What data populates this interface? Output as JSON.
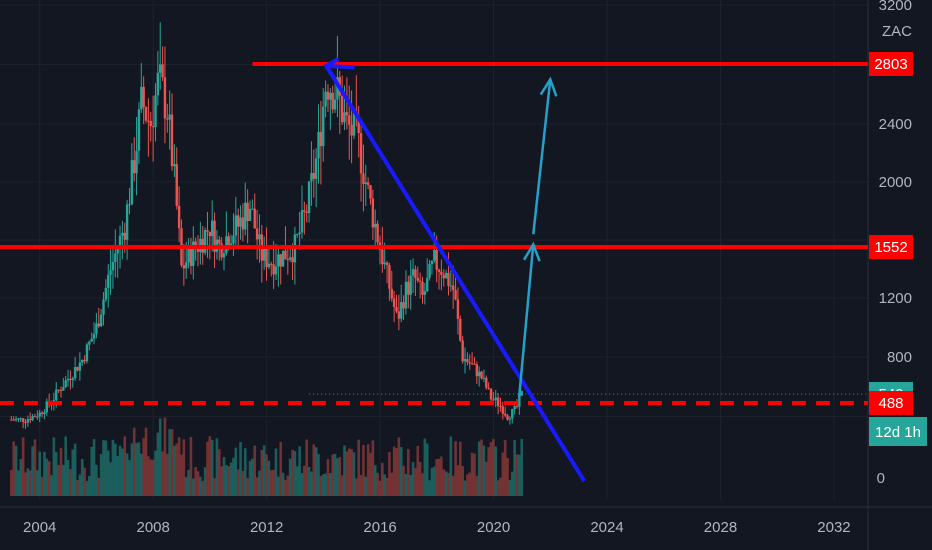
{
  "chart_data": {
    "type": "candlestick",
    "symbol": "ZAC",
    "x_ticks": [
      "2004",
      "2008",
      "2012",
      "2016",
      "2020",
      "2024",
      "2028",
      "2032"
    ],
    "y_ticks": [
      3200,
      2400,
      2000,
      1200,
      800
    ],
    "y_tick_labels": [
      "3200",
      "2400",
      "2000",
      "1200",
      "800"
    ],
    "y_partial_label": "0",
    "ylim": [
      0,
      3250
    ],
    "xlim": [
      2002.6,
      2033.2
    ],
    "price_tags": [
      {
        "label": "2803",
        "value": 2803,
        "color": "#ff0000"
      },
      {
        "label": "1552",
        "value": 1552,
        "color": "#ff0000"
      },
      {
        "label": "540",
        "value": 540,
        "color": "#26a69a"
      },
      {
        "label": "488",
        "value": 488,
        "color": "#ff0000"
      }
    ],
    "countdown_label": "12d 1h",
    "horizontal_levels": [
      {
        "value": 2803,
        "style": "solid",
        "color": "#ff0000",
        "x_start": 2011.5
      },
      {
        "value": 1552,
        "style": "solid",
        "color": "#ff0000",
        "x_start": 2002.6
      },
      {
        "value": 488,
        "style": "dashed",
        "color": "#ff0000",
        "x_start": 2002.6
      }
    ],
    "trendline": {
      "color": "#1a1aff",
      "points": [
        [
          2014.1,
          2790
        ],
        [
          2023.2,
          -20
        ]
      ]
    },
    "projection_arrows": [
      {
        "color": "#26a0c8",
        "from": [
          2020.9,
          520
        ],
        "to": [
          2021.4,
          1570
        ]
      },
      {
        "color": "#26a0c8",
        "from": [
          2021.4,
          1640
        ],
        "to": [
          2022.0,
          2700
        ]
      }
    ],
    "top_marker": {
      "color": "#1a1aff",
      "at": [
        2014.1,
        2790
      ],
      "to": [
        2015.1,
        2780
      ]
    },
    "price_series": [
      [
        2003.0,
        380
      ],
      [
        2003.5,
        380
      ],
      [
        2004.0,
        420
      ],
      [
        2004.5,
        520
      ],
      [
        2005.0,
        650
      ],
      [
        2005.5,
        780
      ],
      [
        2006.0,
        1000
      ],
      [
        2006.5,
        1400
      ],
      [
        2007.0,
        1700
      ],
      [
        2007.3,
        2100
      ],
      [
        2007.6,
        2550
      ],
      [
        2007.9,
        2400
      ],
      [
        2008.2,
        2700
      ],
      [
        2008.5,
        2500
      ],
      [
        2008.8,
        1900
      ],
      [
        2009.0,
        1400
      ],
      [
        2009.3,
        1500
      ],
      [
        2009.7,
        1600
      ],
      [
        2010.0,
        1700
      ],
      [
        2010.3,
        1550
      ],
      [
        2010.7,
        1650
      ],
      [
        2011.0,
        1700
      ],
      [
        2011.4,
        1850
      ],
      [
        2011.8,
        1500
      ],
      [
        2012.2,
        1450
      ],
      [
        2012.6,
        1500
      ],
      [
        2013.0,
        1550
      ],
      [
        2013.4,
        1800
      ],
      [
        2013.8,
        2200
      ],
      [
        2014.1,
        2700
      ],
      [
        2014.5,
        2600
      ],
      [
        2014.8,
        2400
      ],
      [
        2015.2,
        2300
      ],
      [
        2015.6,
        1900
      ],
      [
        2016.0,
        1550
      ],
      [
        2016.3,
        1300
      ],
      [
        2016.6,
        1050
      ],
      [
        2016.9,
        1250
      ],
      [
        2017.2,
        1350
      ],
      [
        2017.5,
        1200
      ],
      [
        2017.9,
        1450
      ],
      [
        2018.2,
        1400
      ],
      [
        2018.6,
        1250
      ],
      [
        2018.9,
        800
      ],
      [
        2019.2,
        750
      ],
      [
        2019.6,
        650
      ],
      [
        2019.9,
        520
      ],
      [
        2020.2,
        480
      ],
      [
        2020.5,
        400
      ],
      [
        2020.8,
        450
      ],
      [
        2021.0,
        540
      ]
    ],
    "candle_interval_years": 0.0833,
    "volume_ylim": [
      0,
      1
    ]
  }
}
